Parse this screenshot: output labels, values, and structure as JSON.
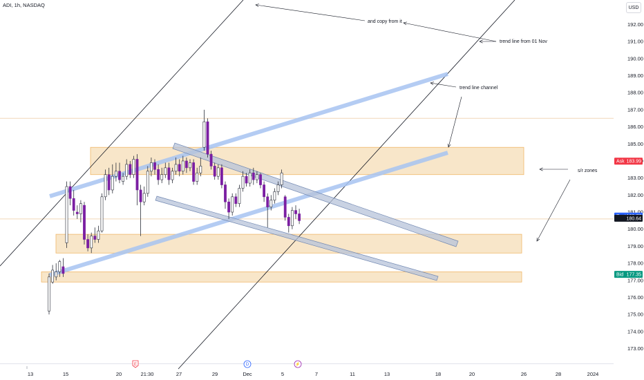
{
  "header": {
    "title": "ADI, 1h, NASDAQ",
    "currency": "USD"
  },
  "colors": {
    "bull": "#ffffff",
    "bear": "#7b1fa2",
    "wick": "#2a2e39",
    "zone_fill": "#f5d9ac",
    "zone_stroke": "#f0b86a",
    "channel": "#a7c4f2",
    "gray_channel": "#b7c3d9",
    "ask": "#f23645",
    "post": "#2962ff",
    "last": "#131722",
    "bid": "#089981"
  },
  "chart_data": {
    "type": "candlestick",
    "title": "ADI, 1h, NASDAQ",
    "ylim": [
      172.5,
      192.8
    ],
    "y_ticks": [
      173,
      174,
      175,
      176,
      177,
      178,
      179,
      180,
      181,
      182,
      183,
      184,
      185,
      186,
      187,
      188,
      189,
      190,
      191,
      192
    ],
    "x_ticks": [
      "13",
      "15",
      "20",
      "21:30",
      "27",
      "29",
      "Dec",
      "5",
      "7",
      "11",
      "13",
      "18",
      "20",
      "26",
      "28",
      "2024"
    ],
    "candles": [
      [
        175.2,
        177.2,
        175.0,
        177.4
      ],
      [
        176.9,
        177.6,
        176.8,
        177.9
      ],
      [
        177.2,
        177.5,
        177.0,
        178.0
      ],
      [
        177.5,
        178.1,
        177.2,
        178.2
      ],
      [
        177.8,
        177.4,
        177.2,
        178.3
      ],
      [
        179.2,
        182.5,
        178.9,
        182.8
      ],
      [
        182.5,
        181.8,
        181.4,
        182.8
      ],
      [
        181.8,
        181.1,
        180.8,
        182.3
      ],
      [
        181.0,
        180.9,
        180.6,
        181.4
      ],
      [
        180.9,
        181.5,
        180.4,
        181.7
      ],
      [
        181.4,
        179.4,
        179.1,
        181.6
      ],
      [
        179.4,
        178.9,
        178.7,
        179.7
      ],
      [
        178.9,
        179.6,
        178.6,
        179.8
      ],
      [
        179.6,
        179.4,
        179.2,
        180.1
      ],
      [
        179.4,
        179.9,
        179.2,
        180.2
      ],
      [
        179.9,
        181.9,
        179.8,
        182.1
      ],
      [
        181.9,
        183.2,
        181.7,
        183.5
      ],
      [
        183.2,
        182.3,
        182.0,
        183.6
      ],
      [
        182.3,
        183.1,
        182.1,
        183.8
      ],
      [
        183.1,
        183.4,
        182.8,
        183.9
      ],
      [
        183.4,
        182.9,
        182.7,
        183.9
      ],
      [
        182.8,
        183.1,
        182.6,
        183.3
      ],
      [
        183.1,
        183.8,
        182.9,
        184.1
      ],
      [
        183.8,
        183.2,
        183.0,
        184.0
      ],
      [
        183.2,
        184.1,
        183.0,
        184.3
      ],
      [
        184.1,
        182.3,
        181.4,
        184.4
      ],
      [
        182.3,
        181.6,
        179.6,
        182.6
      ],
      [
        181.6,
        182.1,
        181.4,
        182.5
      ],
      [
        182.1,
        183.4,
        181.9,
        183.7
      ],
      [
        183.4,
        183.9,
        183.1,
        184.2
      ],
      [
        183.9,
        183.5,
        183.2,
        184.1
      ],
      [
        183.5,
        182.9,
        182.6,
        183.8
      ],
      [
        182.9,
        183.2,
        182.7,
        183.6
      ],
      [
        183.2,
        183.6,
        183.0,
        183.9
      ],
      [
        183.6,
        182.9,
        182.6,
        183.9
      ],
      [
        182.9,
        183.4,
        182.7,
        183.6
      ],
      [
        183.4,
        183.8,
        183.2,
        184.2
      ],
      [
        183.8,
        183.4,
        183.1,
        184.1
      ],
      [
        183.4,
        184.0,
        183.2,
        184.3
      ],
      [
        184.0,
        183.6,
        183.3,
        184.2
      ],
      [
        183.6,
        183.9,
        183.4,
        184.1
      ],
      [
        183.9,
        182.8,
        182.6,
        184.1
      ],
      [
        182.8,
        183.3,
        182.6,
        183.6
      ],
      [
        183.3,
        183.7,
        183.1,
        184.2
      ],
      [
        184.8,
        186.3,
        184.6,
        187.0
      ],
      [
        186.3,
        184.4,
        184.2,
        186.5
      ],
      [
        184.4,
        183.7,
        183.5,
        184.6
      ],
      [
        183.7,
        183.1,
        182.9,
        183.9
      ],
      [
        183.1,
        183.6,
        182.9,
        183.8
      ],
      [
        183.6,
        182.6,
        182.4,
        183.8
      ],
      [
        182.6,
        181.6,
        181.2,
        182.8
      ],
      [
        181.6,
        181.0,
        180.6,
        181.8
      ],
      [
        181.0,
        181.9,
        180.8,
        182.1
      ],
      [
        181.9,
        181.5,
        181.3,
        182.1
      ],
      [
        181.5,
        182.4,
        181.3,
        182.6
      ],
      [
        182.4,
        183.1,
        182.2,
        183.4
      ],
      [
        183.1,
        182.7,
        182.5,
        183.3
      ],
      [
        182.7,
        183.3,
        182.5,
        183.5
      ],
      [
        183.3,
        182.9,
        182.6,
        183.6
      ],
      [
        182.9,
        183.2,
        182.7,
        183.4
      ],
      [
        183.2,
        182.6,
        182.4,
        183.3
      ],
      [
        182.6,
        181.9,
        181.6,
        182.8
      ],
      [
        181.9,
        181.3,
        180.1,
        182.1
      ],
      [
        181.3,
        181.7,
        181.1,
        182.0
      ],
      [
        181.7,
        182.2,
        181.5,
        182.4
      ],
      [
        182.2,
        182.6,
        182.0,
        182.8
      ],
      [
        182.6,
        183.3,
        182.4,
        183.5
      ],
      [
        181.9,
        180.7,
        180.5,
        182.0
      ],
      [
        180.7,
        180.2,
        179.8,
        180.9
      ],
      [
        180.2,
        181.1,
        180.0,
        181.3
      ],
      [
        181.1,
        180.9,
        180.6,
        181.4
      ],
      [
        180.9,
        180.5,
        180.3,
        181.2
      ]
    ],
    "horizontal_lines": [
      186.5,
      180.6
    ],
    "price_tags": [
      {
        "label": "Ask",
        "value": "183.99"
      },
      {
        "label": "Post",
        "value": "180.77"
      },
      {
        "label": "",
        "value": "180.64"
      },
      {
        "label": "Bid",
        "value": "177.35"
      }
    ],
    "zones": [
      {
        "name": "zone-upper",
        "y_top": 184.8,
        "y_bottom": 183.2
      },
      {
        "name": "zone-middle",
        "y_top": 179.7,
        "y_bottom": 178.6
      },
      {
        "name": "zone-lower",
        "y_top": 177.5,
        "y_bottom": 176.9
      }
    ],
    "annotations": [
      {
        "text": "and copy from it"
      },
      {
        "text": "trend line from 01 Nov"
      },
      {
        "text": "trend line channel"
      },
      {
        "text": "s/r zones"
      }
    ],
    "events": [
      {
        "symbol": "E",
        "color": "#f23645"
      },
      {
        "symbol": "D",
        "color": "#2962ff"
      },
      {
        "symbol": "⚡",
        "color": "#9c27b0"
      }
    ]
  }
}
